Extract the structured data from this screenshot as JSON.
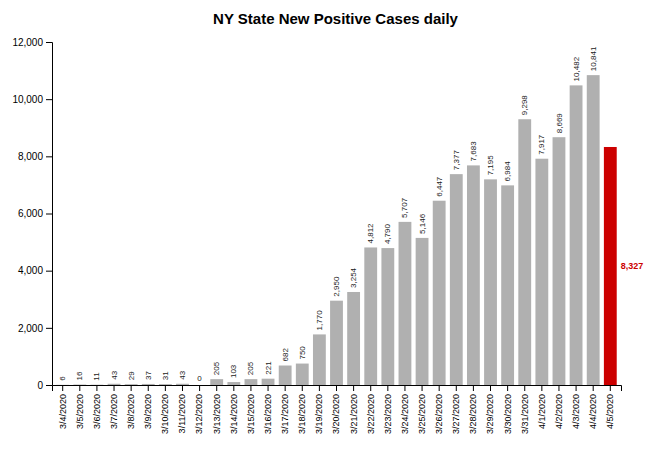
{
  "chart_data": {
    "type": "bar",
    "title": "NY State New Positive Cases daily",
    "categories": [
      "3/4/2020",
      "3/5/2020",
      "3/6/2020",
      "3/7/2020",
      "3/8/2020",
      "3/9/2020",
      "3/10/2020",
      "3/11/2020",
      "3/12/2020",
      "3/13/2020",
      "3/14/2020",
      "3/15/2020",
      "3/16/2020",
      "3/17/2020",
      "3/18/2020",
      "3/19/2020",
      "3/20/2020",
      "3/21/2020",
      "3/22/2020",
      "3/23/2020",
      "3/24/2020",
      "3/25/2020",
      "3/26/2020",
      "3/27/2020",
      "3/28/2020",
      "3/29/2020",
      "3/30/2020",
      "3/31/2020",
      "4/1/2020",
      "4/2/2020",
      "4/3/2020",
      "4/4/2020",
      "4/5/2020"
    ],
    "values": [
      6,
      16,
      11,
      43,
      29,
      37,
      31,
      43,
      0,
      205,
      103,
      205,
      221,
      682,
      750,
      1770,
      2950,
      3254,
      4812,
      4790,
      5707,
      5146,
      6447,
      7377,
      7683,
      7195,
      6984,
      9298,
      7917,
      8669,
      10482,
      10841,
      8327
    ],
    "value_labels": [
      "6",
      "16",
      "11",
      "43",
      "29",
      "37",
      "31",
      "43",
      "0",
      "205",
      "103",
      "205",
      "221",
      "682",
      "750",
      "1,770",
      "2,950",
      "3,254",
      "4,812",
      "4,790",
      "5,707",
      "5,146",
      "6,447",
      "7,377",
      "7,683",
      "7,195",
      "6,984",
      "9,298",
      "7,917",
      "8,669",
      "10,482",
      "10,841",
      "8,327"
    ],
    "colors": [
      "#b0b0b0",
      "#b0b0b0",
      "#b0b0b0",
      "#b0b0b0",
      "#b0b0b0",
      "#b0b0b0",
      "#b0b0b0",
      "#b0b0b0",
      "#b0b0b0",
      "#b0b0b0",
      "#b0b0b0",
      "#b0b0b0",
      "#b0b0b0",
      "#b0b0b0",
      "#b0b0b0",
      "#b0b0b0",
      "#b0b0b0",
      "#b0b0b0",
      "#b0b0b0",
      "#b0b0b0",
      "#b0b0b0",
      "#b0b0b0",
      "#b0b0b0",
      "#b0b0b0",
      "#b0b0b0",
      "#b0b0b0",
      "#b0b0b0",
      "#b0b0b0",
      "#b0b0b0",
      "#b0b0b0",
      "#b0b0b0",
      "#b0b0b0",
      "#cc0000"
    ],
    "ylim": [
      0,
      12000
    ],
    "yticks": [
      0,
      {
        "value": 2000,
        "label": "2,000"
      },
      {
        "value": 4000,
        "label": "4,000"
      },
      {
        "value": 6000,
        "label": "6,000"
      },
      {
        "value": 8000,
        "label": "8,000"
      },
      {
        "value": 10000,
        "label": "10,000"
      },
      {
        "value": 12000,
        "label": "12,000"
      }
    ],
    "grid": false,
    "data_labels": true
  }
}
